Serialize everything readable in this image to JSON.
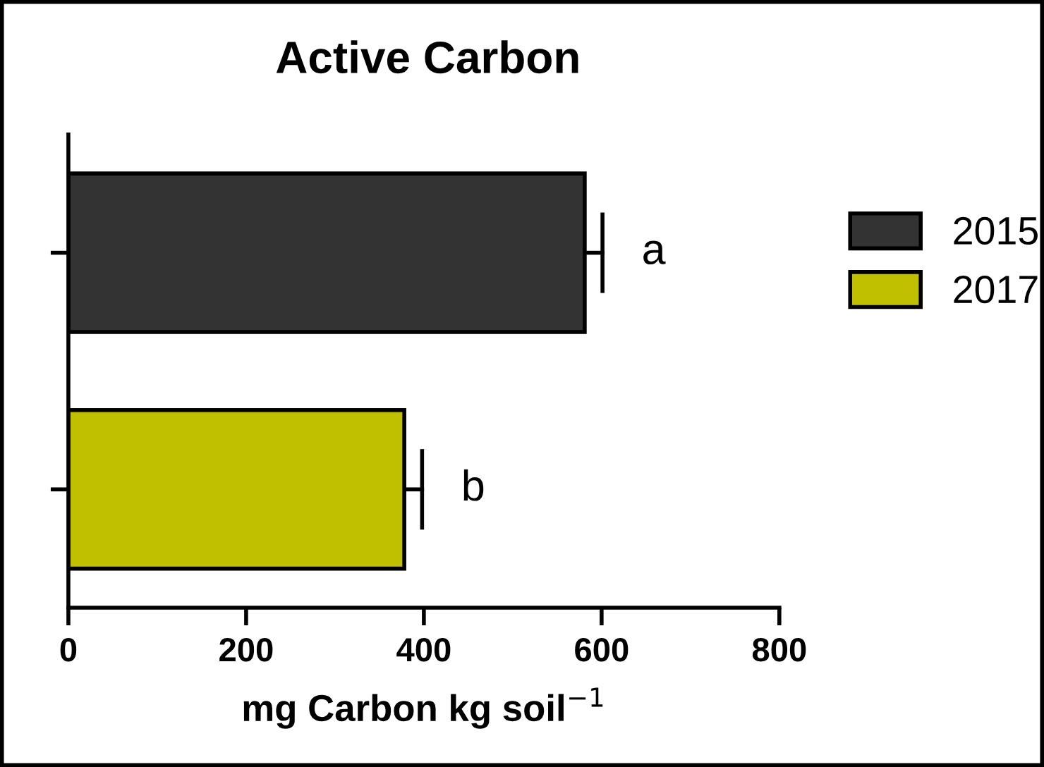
{
  "chart_data": {
    "type": "bar",
    "orientation": "horizontal",
    "title": "Active Carbon",
    "xlabel": "mg Carbon kg soil$^{−1}$",
    "categories": [
      null,
      null
    ],
    "series": [
      {
        "name": "2015",
        "color": "#333333",
        "values": [
          581,
          null
        ],
        "errors": [
          [
            581,
            601
          ],
          null
        ]
      },
      {
        "name": "2017",
        "color": "#c0c000",
        "values": [
          null,
          378
        ],
        "errors": [
          null,
          [
            378,
            398
          ]
        ]
      }
    ],
    "annotations": [
      "a",
      "b"
    ],
    "xlim": [
      0,
      800
    ],
    "xticks": [
      0,
      200,
      400,
      600,
      800
    ],
    "grid": false,
    "legend": "right"
  }
}
